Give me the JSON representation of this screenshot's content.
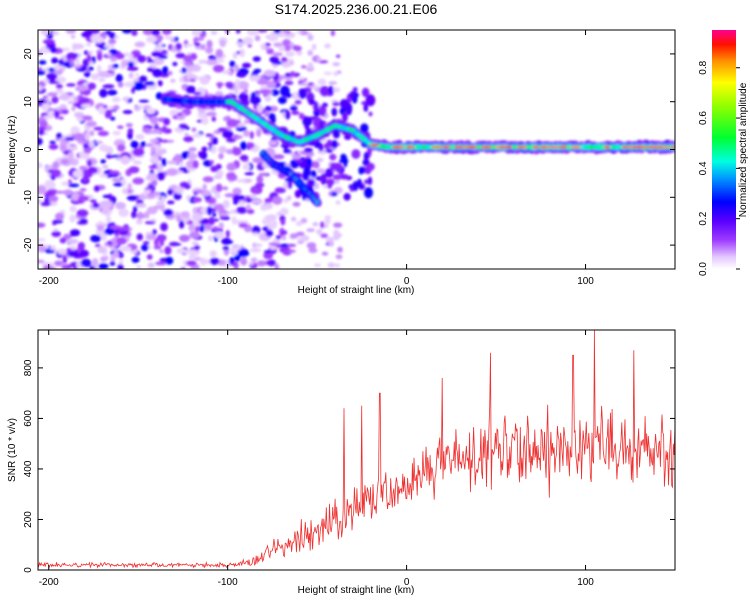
{
  "title": "S174.2025.236.00.21.E06",
  "chart_data": [
    {
      "type": "heatmap",
      "title": "S174.2025.236.00.21.E06",
      "xlabel": "Height of straight line (km)",
      "ylabel": "Frequency (Hz)",
      "xlim": [
        -206,
        150
      ],
      "ylim": [
        -25,
        25
      ],
      "xticks": [
        -200,
        -100,
        0,
        100
      ],
      "yticks": [
        -20,
        -10,
        0,
        10,
        20
      ],
      "colorbar": {
        "label": "Normalized spectral amplitude",
        "range": [
          0,
          0.95
        ],
        "ticks": [
          0.0,
          0.2,
          0.4,
          0.6,
          0.8
        ]
      },
      "ridge": {
        "description": "dominant frequency ridge",
        "x": [
          -135,
          -120,
          -105,
          -98,
          -90,
          -80,
          -70,
          -60,
          -50,
          -40,
          -30,
          -20,
          -10,
          0,
          20,
          40,
          60,
          80,
          100,
          120,
          150
        ],
        "y": [
          10.5,
          10,
          10,
          10,
          8,
          5.5,
          3,
          1.5,
          3,
          5,
          4,
          1,
          0.5,
          0.5,
          0.5,
          0.5,
          0.5,
          0.5,
          0.5,
          0.5,
          0.5
        ]
      },
      "branch": {
        "description": "descending branch",
        "x": [
          -80,
          -75,
          -70,
          -65,
          -60,
          -55,
          -50
        ],
        "y": [
          -1,
          -3,
          -4,
          -5,
          -7,
          -9,
          -11
        ]
      }
    },
    {
      "type": "line",
      "xlabel": "Height of straight line (km)",
      "ylabel": "SNR (10 * v/v)",
      "xlim": [
        -206,
        150
      ],
      "ylim": [
        0,
        950
      ],
      "xticks": [
        -200,
        -100,
        0,
        100
      ],
      "yticks": [
        0,
        200,
        400,
        600,
        800
      ],
      "series": [
        {
          "name": "SNR",
          "color": "#ef3030",
          "envelope_x": [
            -206,
            -110,
            -95,
            -85,
            -75,
            -65,
            -55,
            -45,
            -35,
            -25,
            -15,
            -5,
            5,
            15,
            25,
            35,
            45,
            55,
            65,
            75,
            85,
            95,
            105,
            115,
            125,
            135,
            150
          ],
          "envelope_mean": [
            20,
            20,
            22,
            35,
            80,
            110,
            140,
            180,
            220,
            260,
            290,
            320,
            360,
            410,
            430,
            440,
            455,
            465,
            470,
            480,
            485,
            490,
            495,
            490,
            480,
            470,
            460
          ],
          "envelope_amp": [
            12,
            12,
            15,
            30,
            60,
            70,
            90,
            110,
            130,
            140,
            150,
            150,
            160,
            170,
            180,
            190,
            200,
            200,
            200,
            200,
            200,
            200,
            210,
            200,
            200,
            190,
            180
          ],
          "peaks": [
            {
              "x": 47,
              "y": 860
            },
            {
              "x": 93,
              "y": 850
            },
            {
              "x": 105,
              "y": 950
            },
            {
              "x": 127,
              "y": 870
            },
            {
              "x": -15,
              "y": 700
            },
            {
              "x": -25,
              "y": 650
            },
            {
              "x": -35,
              "y": 640
            },
            {
              "x": 20,
              "y": 760
            }
          ]
        }
      ]
    }
  ]
}
